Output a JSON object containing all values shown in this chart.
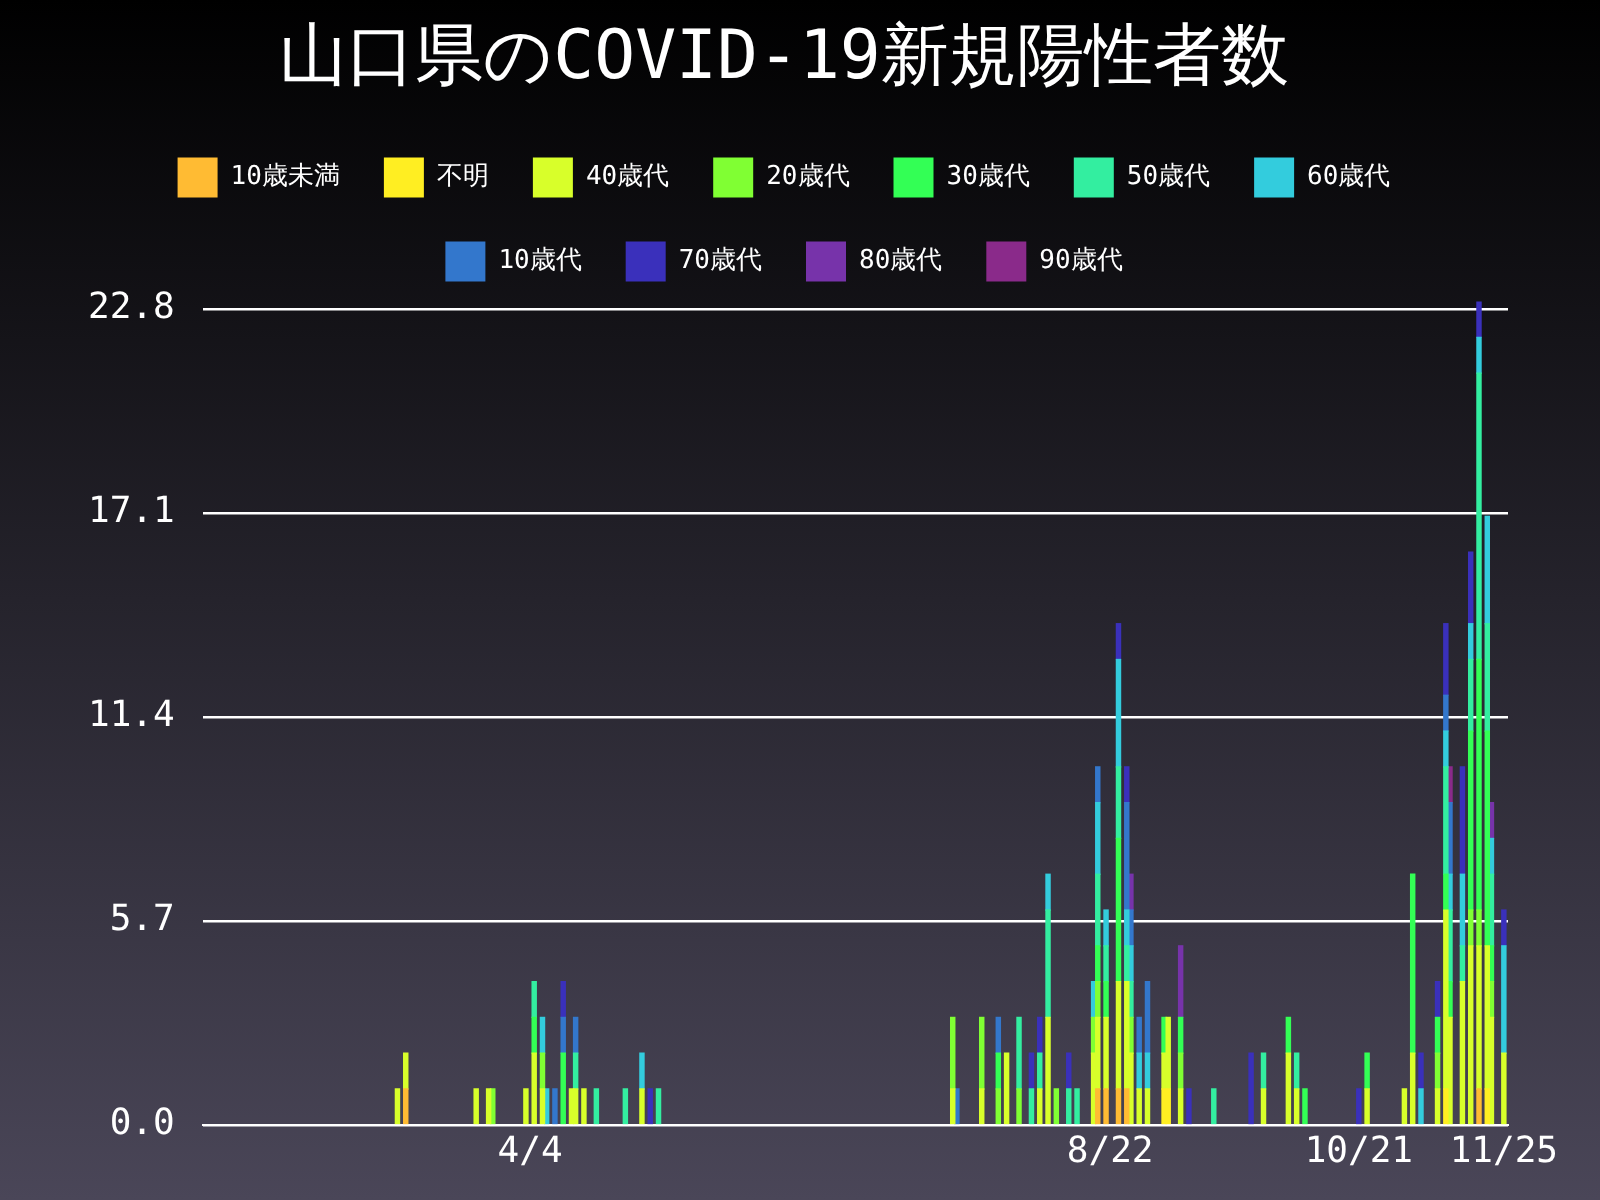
{
  "chart_data": {
    "type": "bar",
    "title": "山口県のCOVID-19新規陽性者数",
    "stacked": true,
    "legend": "top",
    "grid": "y",
    "xlim": [
      "--01-16",
      "--11-26"
    ],
    "xticks": [
      {
        "value": "--04-04",
        "label": "4/4"
      },
      {
        "value": "--08-22",
        "label": "8/22"
      },
      {
        "value": "--10-21",
        "label": "10/21"
      },
      {
        "value": "--11-25",
        "label": "11/25"
      }
    ],
    "ylim": [
      0,
      23
    ],
    "yticks": [
      {
        "value": 0,
        "label": "0.0"
      },
      5.7,
      11.4,
      17.1,
      22.8
    ],
    "x": [
      "--03-03",
      "--03-05",
      "--03-22",
      "--03-25",
      "--03-26",
      "--04-03",
      "--04-05",
      "--04-07",
      "--04-08",
      "--04-10",
      "--04-12",
      "--04-14",
      "--04-15",
      "--04-17",
      "--04-20",
      "--04-27",
      "--05-01",
      "--05-03",
      "--05-05",
      "--07-15",
      "--07-16",
      "--07-22",
      "--07-26",
      "--07-28",
      "--07-31",
      "--08-03",
      "--08-05",
      "--08-07",
      "--08-09",
      "--08-12",
      "--08-14",
      "--08-18",
      "--08-19",
      "--08-21",
      "--08-24",
      "--08-26",
      "--08-27",
      "--08-29",
      "--08-31",
      "--09-04",
      "--09-05",
      "--09-08",
      "--09-10",
      "--09-16",
      "--09-25",
      "--09-28",
      "--10-04",
      "--10-06",
      "--10-08",
      "--10-21",
      "--10-23",
      "--11-01",
      "--11-03",
      "--11-05",
      "--11-09",
      "--11-11",
      "--11-12",
      "--11-15",
      "--11-17",
      "--11-19",
      "--11-21",
      "--11-22",
      "--11-25"
    ],
    "series": [
      {
        "name": "10歳未満",
        "color": "#ffbb33",
        "values": [
          null,
          1,
          null,
          null,
          null,
          null,
          null,
          null,
          null,
          null,
          null,
          null,
          null,
          null,
          null,
          null,
          null,
          null,
          null,
          null,
          null,
          null,
          null,
          null,
          null,
          null,
          null,
          null,
          null,
          null,
          null,
          null,
          1,
          1,
          1,
          1,
          null,
          null,
          null,
          null,
          null,
          null,
          null,
          null,
          null,
          null,
          null,
          null,
          null,
          null,
          null,
          null,
          null,
          null,
          null,
          null,
          null,
          null,
          null,
          1,
          null,
          null,
          null
        ]
      },
      {
        "name": "不明",
        "color": "#ffee22",
        "values": [
          null,
          null,
          null,
          null,
          null,
          null,
          null,
          null,
          null,
          null,
          null,
          null,
          null,
          null,
          null,
          null,
          null,
          null,
          null,
          null,
          null,
          null,
          null,
          null,
          null,
          null,
          null,
          null,
          null,
          null,
          null,
          null,
          null,
          null,
          null,
          null,
          null,
          null,
          null,
          1,
          1,
          null,
          null,
          null,
          null,
          null,
          null,
          null,
          null,
          null,
          null,
          null,
          null,
          null,
          null,
          1,
          null,
          null,
          null,
          null,
          1,
          null,
          null
        ]
      },
      {
        "name": "40歳代",
        "color": "#d8ff2a",
        "values": [
          1,
          1,
          1,
          1,
          null,
          1,
          2,
          1,
          null,
          null,
          null,
          1,
          1,
          1,
          null,
          null,
          1,
          null,
          null,
          1,
          null,
          1,
          null,
          2,
          null,
          null,
          1,
          3,
          null,
          null,
          null,
          2,
          2,
          2,
          3,
          3,
          2,
          1,
          1,
          1,
          2,
          1,
          null,
          null,
          null,
          1,
          2,
          1,
          null,
          null,
          1,
          1,
          2,
          null,
          1,
          5,
          3,
          4,
          5,
          4,
          4,
          3,
          2
        ]
      },
      {
        "name": "20歳代",
        "color": "#80ff33",
        "values": [
          null,
          null,
          null,
          null,
          1,
          null,
          null,
          1,
          null,
          null,
          null,
          null,
          null,
          null,
          null,
          null,
          null,
          null,
          null,
          2,
          null,
          2,
          1,
          null,
          1,
          null,
          null,
          null,
          1,
          null,
          null,
          1,
          1,
          null,
          null,
          null,
          1,
          null,
          null,
          null,
          null,
          1,
          null,
          null,
          null,
          null,
          null,
          null,
          null,
          null,
          null,
          null,
          null,
          null,
          1,
          null,
          null,
          null,
          1,
          1,
          null,
          1,
          null
        ]
      },
      {
        "name": "30歳代",
        "color": "#33ff55",
        "values": [
          null,
          null,
          null,
          null,
          null,
          null,
          1,
          null,
          null,
          null,
          2,
          null,
          null,
          null,
          null,
          null,
          null,
          null,
          null,
          null,
          null,
          null,
          1,
          null,
          null,
          null,
          null,
          null,
          null,
          null,
          null,
          null,
          1,
          1,
          4,
          null,
          null,
          null,
          null,
          1,
          null,
          1,
          null,
          null,
          null,
          null,
          1,
          null,
          1,
          null,
          1,
          null,
          5,
          null,
          1,
          1,
          1,
          null,
          5,
          7,
          6,
          1,
          null
        ]
      },
      {
        "name": "50歳代",
        "color": "#33eea0",
        "values": [
          null,
          null,
          null,
          null,
          null,
          null,
          1,
          null,
          null,
          null,
          null,
          null,
          1,
          null,
          1,
          1,
          null,
          null,
          1,
          null,
          null,
          null,
          null,
          null,
          2,
          1,
          1,
          3,
          null,
          1,
          1,
          null,
          2,
          1,
          2,
          1,
          1,
          null,
          null,
          null,
          null,
          null,
          null,
          1,
          null,
          1,
          null,
          1,
          null,
          null,
          null,
          null,
          null,
          null,
          null,
          3,
          2,
          1,
          2,
          8,
          3,
          2,
          null
        ]
      },
      {
        "name": "60歳代",
        "color": "#33ccdd",
        "values": [
          null,
          null,
          null,
          null,
          null,
          null,
          null,
          1,
          1,
          null,
          null,
          null,
          null,
          null,
          null,
          null,
          1,
          null,
          null,
          null,
          null,
          null,
          null,
          null,
          null,
          null,
          null,
          1,
          null,
          null,
          null,
          1,
          2,
          1,
          3,
          1,
          1,
          1,
          1,
          null,
          null,
          null,
          null,
          null,
          null,
          null,
          null,
          null,
          null,
          null,
          null,
          null,
          null,
          1,
          null,
          1,
          1,
          2,
          1,
          1,
          3,
          1,
          3
        ]
      },
      {
        "name": "10歳代",
        "color": "#3377cc",
        "values": [
          null,
          null,
          null,
          null,
          null,
          null,
          null,
          null,
          null,
          1,
          1,
          null,
          1,
          null,
          null,
          null,
          null,
          null,
          null,
          null,
          1,
          null,
          1,
          null,
          null,
          null,
          null,
          null,
          null,
          null,
          null,
          null,
          1,
          null,
          null,
          3,
          1,
          1,
          2,
          null,
          null,
          null,
          null,
          null,
          null,
          null,
          null,
          null,
          null,
          null,
          null,
          null,
          null,
          null,
          null,
          1,
          2,
          null,
          null,
          null,
          null,
          null,
          null
        ]
      },
      {
        "name": "70歳代",
        "color": "#3a30bb",
        "values": [
          null,
          null,
          null,
          null,
          null,
          null,
          null,
          null,
          null,
          null,
          1,
          null,
          null,
          null,
          null,
          null,
          null,
          1,
          null,
          null,
          null,
          null,
          null,
          null,
          null,
          1,
          1,
          null,
          null,
          1,
          null,
          null,
          null,
          null,
          1,
          1,
          null,
          null,
          null,
          null,
          null,
          null,
          1,
          null,
          2,
          null,
          null,
          null,
          null,
          1,
          null,
          null,
          null,
          1,
          1,
          2,
          null,
          3,
          2,
          1,
          null,
          null,
          1
        ]
      },
      {
        "name": "80歳代",
        "color": "#7733aa",
        "values": [
          null,
          null,
          null,
          null,
          null,
          null,
          null,
          null,
          null,
          null,
          null,
          null,
          null,
          null,
          null,
          null,
          null,
          null,
          null,
          null,
          null,
          null,
          null,
          null,
          null,
          null,
          null,
          null,
          null,
          null,
          null,
          null,
          null,
          null,
          null,
          null,
          1,
          null,
          null,
          null,
          null,
          2,
          null,
          null,
          null,
          null,
          null,
          null,
          null,
          null,
          null,
          null,
          null,
          null,
          null,
          null,
          null,
          null,
          null,
          null,
          null,
          1,
          null
        ]
      },
      {
        "name": "90歳代",
        "color": "#8a2a8a",
        "values": [
          null,
          null,
          null,
          null,
          null,
          null,
          null,
          null,
          null,
          null,
          null,
          null,
          null,
          null,
          null,
          null,
          null,
          null,
          null,
          null,
          null,
          null,
          null,
          null,
          null,
          null,
          null,
          null,
          null,
          null,
          null,
          null,
          null,
          null,
          null,
          null,
          null,
          null,
          null,
          null,
          null,
          null,
          null,
          null,
          null,
          null,
          null,
          null,
          null,
          null,
          null,
          null,
          null,
          null,
          null,
          null,
          1,
          null,
          null,
          null,
          null,
          null,
          null
        ]
      }
    ]
  }
}
